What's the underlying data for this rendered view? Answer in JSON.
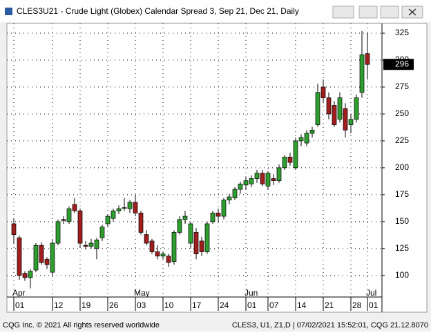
{
  "chart_data": {
    "type": "candlestick",
    "title": "CLES3U21 - Crude Light (Globex) Calendar Spread 3, Sep 21, Dec 21, Daily",
    "categories": [
      "01",
      null,
      null,
      null,
      null,
      null,
      null,
      "12",
      null,
      null,
      null,
      null,
      "19",
      null,
      null,
      null,
      null,
      "26",
      null,
      null,
      null,
      null,
      "03",
      null,
      null,
      null,
      null,
      "10",
      null,
      null,
      null,
      null,
      "17",
      null,
      null,
      null,
      null,
      "24",
      null,
      null,
      null,
      null,
      "01",
      null,
      null,
      null,
      "07",
      null,
      null,
      null,
      null,
      "14",
      null,
      null,
      null,
      null,
      "21",
      null,
      null,
      null,
      null,
      "28",
      null,
      null,
      "01"
    ],
    "months": [
      "Apr",
      null,
      null,
      null,
      null,
      null,
      null,
      null,
      null,
      null,
      null,
      null,
      null,
      null,
      null,
      null,
      null,
      null,
      null,
      null,
      null,
      null,
      "May",
      null,
      null,
      null,
      null,
      null,
      null,
      null,
      null,
      null,
      null,
      null,
      null,
      null,
      null,
      null,
      null,
      null,
      null,
      null,
      "Jun",
      null,
      null,
      null,
      null,
      null,
      null,
      null,
      null,
      null,
      null,
      null,
      null,
      null,
      null,
      null,
      null,
      null,
      null,
      null,
      null,
      null,
      "Jul"
    ],
    "open": [
      148,
      135,
      102,
      98,
      105,
      128,
      115,
      103,
      130,
      152,
      150,
      166,
      160,
      128,
      127,
      125,
      135,
      148,
      153,
      160,
      163,
      162,
      168,
      158,
      138,
      132,
      122,
      118,
      118,
      113,
      140,
      152,
      130,
      140,
      132,
      122,
      150,
      158,
      155,
      170,
      172,
      180,
      184,
      185,
      190,
      195,
      183,
      190,
      188,
      200,
      210,
      200,
      225,
      223,
      232,
      240,
      275,
      265,
      258,
      245,
      255,
      240,
      245,
      270,
      306
    ],
    "high": [
      153,
      137,
      104,
      106,
      130,
      131,
      117,
      133,
      152,
      155,
      164,
      172,
      162,
      132,
      134,
      135,
      147,
      157,
      162,
      165,
      172,
      170,
      175,
      160,
      142,
      134,
      128,
      122,
      120,
      142,
      155,
      160,
      150,
      144,
      136,
      150,
      160,
      162,
      172,
      176,
      182,
      187,
      192,
      193,
      198,
      198,
      197,
      194,
      203,
      212,
      214,
      228,
      231,
      235,
      238,
      278,
      282,
      270,
      262,
      270,
      260,
      250,
      268,
      327,
      325
    ],
    "low": [
      130,
      96,
      95,
      88,
      103,
      110,
      106,
      100,
      128,
      148,
      148,
      158,
      126,
      124,
      125,
      115,
      132,
      145,
      150,
      157,
      160,
      158,
      155,
      138,
      128,
      120,
      115,
      115,
      108,
      110,
      138,
      148,
      125,
      115,
      118,
      120,
      148,
      150,
      152,
      166,
      170,
      176,
      180,
      182,
      186,
      183,
      180,
      184,
      186,
      198,
      202,
      198,
      220,
      220,
      228,
      238,
      260,
      245,
      238,
      242,
      228,
      232,
      242,
      265,
      282
    ],
    "close": [
      138,
      100,
      98,
      104,
      128,
      112,
      110,
      130,
      150,
      151,
      162,
      160,
      130,
      127,
      130,
      133,
      145,
      155,
      160,
      162,
      163,
      168,
      158,
      140,
      130,
      122,
      118,
      120,
      112,
      140,
      152,
      155,
      148,
      120,
      122,
      148,
      158,
      155,
      170,
      173,
      180,
      185,
      188,
      190,
      195,
      185,
      195,
      188,
      200,
      210,
      205,
      225,
      228,
      232,
      235,
      270,
      265,
      250,
      240,
      265,
      235,
      245,
      265,
      305,
      296
    ],
    "up_color": "#2e9e2e",
    "down_color": "#a01e1e",
    "last_price": 296,
    "ylim": [
      80,
      334
    ],
    "yticks": [
      100,
      125,
      150,
      175,
      200,
      225,
      250,
      275,
      300,
      325
    ],
    "grid": true
  },
  "footer": {
    "left": "CQG Inc. © 2021 All rights reserved worldwide",
    "right": "CLES3, U1, Z1,D | 07/02/2021 15:52:01, CQG 21.12.8070"
  }
}
